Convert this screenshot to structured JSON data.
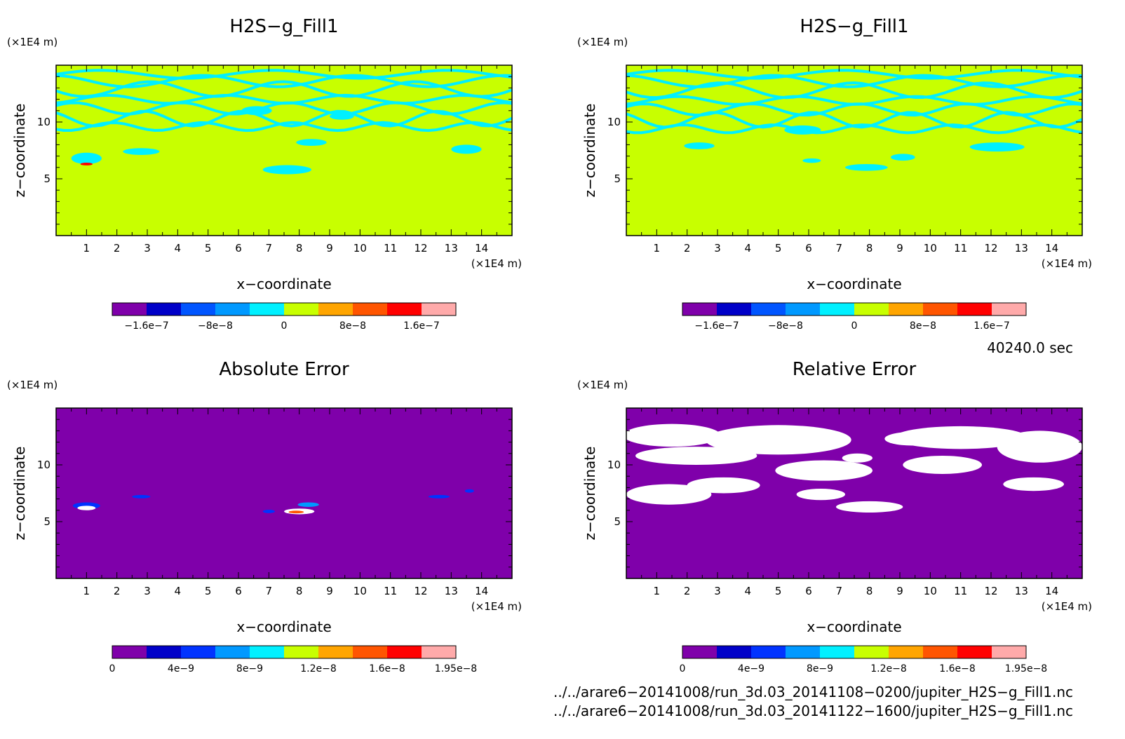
{
  "chart_data": [
    {
      "type": "heatmap",
      "title": "H2S−g_Fill1",
      "xlabel": "x−coordinate",
      "ylabel": "z−coordinate",
      "x_unit": "(×1E4 m)",
      "y_unit": "(×1E4 m)",
      "xlim": [
        0,
        15
      ],
      "ylim": [
        0,
        15
      ],
      "x_ticks": [
        "1",
        "2",
        "3",
        "4",
        "5",
        "6",
        "7",
        "8",
        "9",
        "10",
        "11",
        "12",
        "13",
        "14"
      ],
      "y_ticks": [
        "5",
        "10"
      ],
      "background_value": 2e-08,
      "features": "light cyan banded contours (~0) above z≈6 over yellow-green field; small red/orange spot near x≈1, z≈6.3",
      "colorbar": {
        "levels": [
          "−1.6e−7",
          "−8e−8",
          "0",
          "8e−8",
          "1.6e−7"
        ],
        "colors": [
          "#7f00aa",
          "#0000c8",
          "#0055ff",
          "#0099ff",
          "#00f0ff",
          "#c8ff00",
          "#ffa500",
          "#ff5500",
          "#ff0000",
          "#ffaaaa"
        ]
      }
    },
    {
      "type": "heatmap",
      "title": "H2S−g_Fill1",
      "xlabel": "x−coordinate",
      "ylabel": "z−coordinate",
      "x_unit": "(×1E4 m)",
      "y_unit": "(×1E4 m)",
      "xlim": [
        0,
        15
      ],
      "ylim": [
        0,
        15
      ],
      "x_ticks": [
        "1",
        "2",
        "3",
        "4",
        "5",
        "6",
        "7",
        "8",
        "9",
        "10",
        "11",
        "12",
        "13",
        "14"
      ],
      "y_ticks": [
        "5",
        "10"
      ],
      "background_value": 2e-08,
      "features": "light cyan banded contours (~0) above z≈5.5 over yellow-green field",
      "colorbar": {
        "levels": [
          "−1.6e−7",
          "−8e−8",
          "0",
          "8e−8",
          "1.6e−7"
        ],
        "colors": [
          "#7f00aa",
          "#0000c8",
          "#0055ff",
          "#0099ff",
          "#00f0ff",
          "#c8ff00",
          "#ffa500",
          "#ff5500",
          "#ff0000",
          "#ffaaaa"
        ]
      }
    },
    {
      "type": "heatmap",
      "title": "Absolute Error",
      "xlabel": "x−coordinate",
      "ylabel": "z−coordinate",
      "x_unit": "(×1E4 m)",
      "y_unit": "(×1E4 m)",
      "xlim": [
        0,
        15
      ],
      "ylim": [
        0,
        15
      ],
      "x_ticks": [
        "1",
        "2",
        "3",
        "4",
        "5",
        "6",
        "7",
        "8",
        "9",
        "10",
        "11",
        "12",
        "13",
        "14"
      ],
      "y_ticks": [
        "5",
        "10"
      ],
      "background_value": 0,
      "features": "purple field (~0) with small blue/white/red error spots near x≈1, 2.8, 7, 8, 12.5 at z≈6",
      "colorbar": {
        "levels": [
          "0",
          "4e−9",
          "8e−9",
          "1.2e−8",
          "1.6e−8",
          "1.95e−8"
        ],
        "colors": [
          "#7f00aa",
          "#0000c8",
          "#0033ff",
          "#0099ff",
          "#00f0ff",
          "#c8ff00",
          "#ffa500",
          "#ff5500",
          "#ff0000",
          "#ffaaaa"
        ]
      }
    },
    {
      "type": "heatmap",
      "title": "Relative Error",
      "xlabel": "x−coordinate",
      "ylabel": "z−coordinate",
      "x_unit": "(×1E4 m)",
      "y_unit": "(×1E4 m)",
      "xlim": [
        0,
        15
      ],
      "ylim": [
        0,
        15
      ],
      "x_ticks": [
        "1",
        "2",
        "3",
        "4",
        "5",
        "6",
        "7",
        "8",
        "9",
        "10",
        "11",
        "12",
        "13",
        "14"
      ],
      "y_ticks": [
        "5",
        "10"
      ],
      "background_value": 0,
      "features": "purple field with large white (missing) regions above z≈5.5",
      "colorbar": {
        "levels": [
          "0",
          "4e−9",
          "8e−9",
          "1.2e−8",
          "1.6e−8",
          "1.95e−8"
        ],
        "colors": [
          "#7f00aa",
          "#0000c8",
          "#0033ff",
          "#0099ff",
          "#00f0ff",
          "#c8ff00",
          "#ffa500",
          "#ff5500",
          "#ff0000",
          "#ffaaaa"
        ]
      }
    }
  ],
  "time_label": "40240.0 sec",
  "file_paths": [
    "../../arare6−20141008/run_3d.03_20141108−0200/jupiter_H2S−g_Fill1.nc",
    "../../arare6−20141008/run_3d.03_20141122−1600/jupiter_H2S−g_Fill1.nc"
  ],
  "colors": {
    "yellow_green": "#c8ff00",
    "cyan": "#00f0ff",
    "purple": "#7f00aa",
    "white": "#ffffff"
  }
}
